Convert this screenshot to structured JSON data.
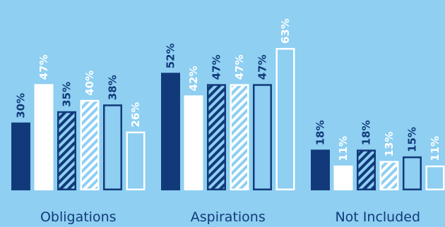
{
  "chart_data": {
    "type": "bar",
    "title": "",
    "xlabel": "",
    "ylabel": "",
    "ylim": [
      0,
      63
    ],
    "grid": false,
    "categories": [
      "Obligations",
      "Aspirations",
      "Not Included"
    ],
    "series": [
      {
        "values": [
          30,
          52,
          18
        ],
        "labels": [
          "30%",
          "52%",
          "18%"
        ],
        "style": "solid-navy"
      },
      {
        "values": [
          47,
          42,
          11
        ],
        "labels": [
          "47%",
          "42%",
          "11%"
        ],
        "style": "solid-white"
      },
      {
        "values": [
          35,
          47,
          18
        ],
        "labels": [
          "35%",
          "47%",
          "18%"
        ],
        "style": "hatched-navy"
      },
      {
        "values": [
          40,
          47,
          13
        ],
        "labels": [
          "40%",
          "47%",
          "13%"
        ],
        "style": "hatched-white"
      },
      {
        "values": [
          38,
          47,
          15
        ],
        "labels": [
          "38%",
          "47%",
          "15%"
        ],
        "style": "outline-navy"
      },
      {
        "values": [
          26,
          63,
          11
        ],
        "labels": [
          "26%",
          "63%",
          "11%"
        ],
        "style": "outline-white"
      }
    ],
    "colors": {
      "background": "#8ecff2",
      "navy": "#123a7a",
      "white": "#ffffff"
    }
  }
}
